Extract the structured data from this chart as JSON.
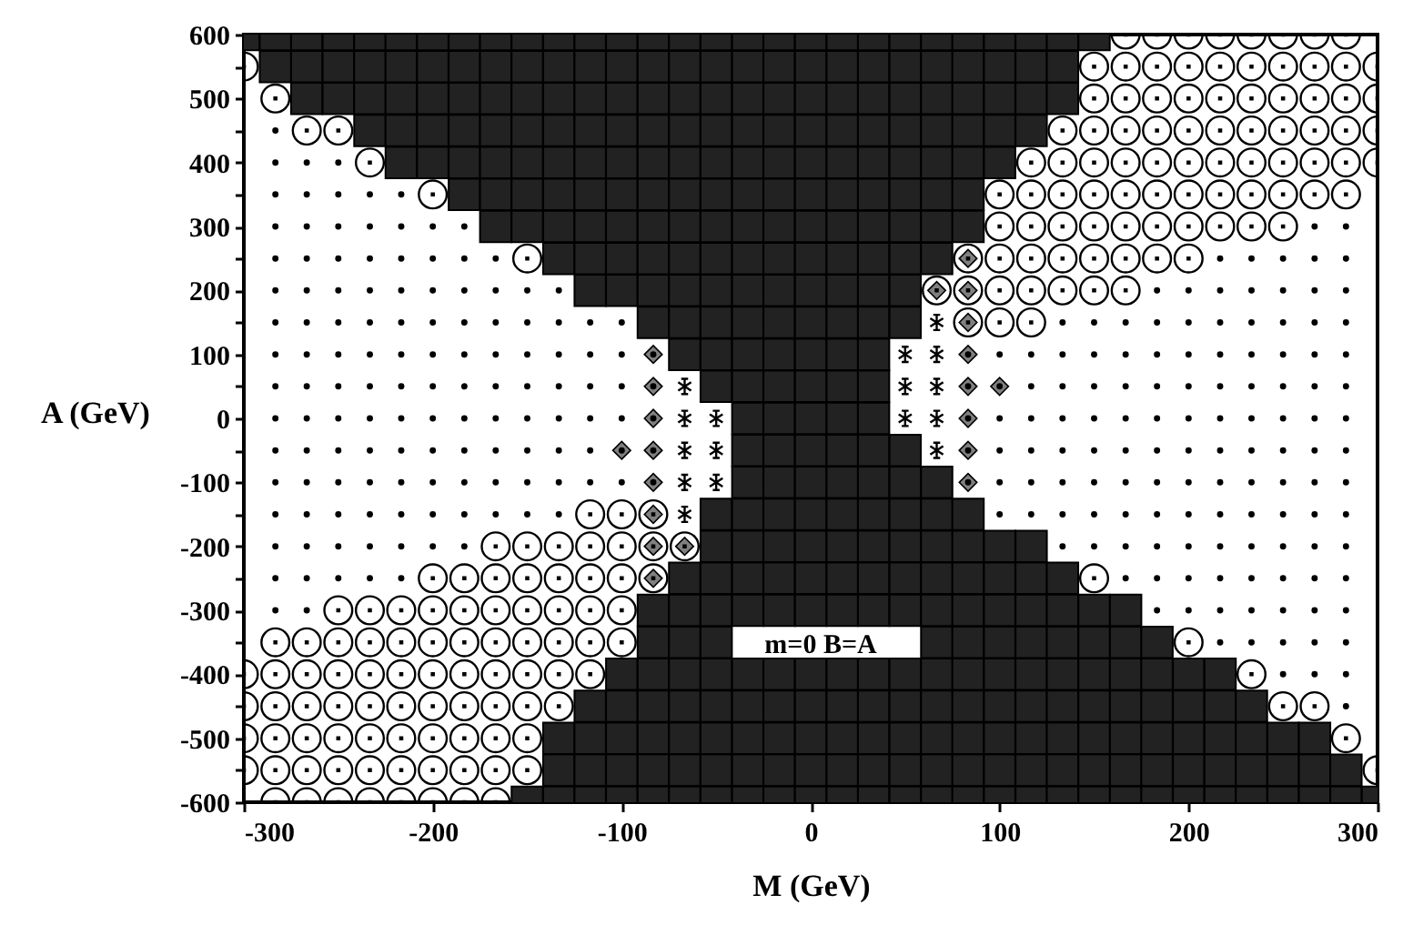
{
  "chart_data": {
    "type": "scatter",
    "xlabel": "M (GeV)",
    "ylabel": "A (GeV)",
    "xlim": [
      -300,
      300
    ],
    "ylim": [
      -600,
      600
    ],
    "xticks": [
      -300,
      -200,
      -100,
      0,
      100,
      200,
      300
    ],
    "yticks": [
      600,
      {
        "value": 550,
        "label": null
      },
      500,
      {
        "value": 450,
        "label": null
      },
      400,
      {
        "value": 350,
        "label": null
      },
      300,
      {
        "value": 250,
        "label": null
      },
      200,
      {
        "value": 150,
        "label": null
      },
      100,
      {
        "value": 50,
        "label": null
      },
      0,
      {
        "value": -50,
        "label": null
      },
      -100,
      {
        "value": -150,
        "label": null
      },
      -200,
      {
        "value": -250,
        "label": null
      },
      -300,
      {
        "value": -350,
        "label": null
      },
      -400,
      {
        "value": -450,
        "label": null
      },
      -500,
      {
        "value": -550,
        "label": null
      },
      -600
    ],
    "grid": false,
    "annotations": [
      "m=0  B=A"
    ],
    "series": [
      {
        "marker": "square",
        "color": "#222222",
        "x": [
          -300,
          -283.3,
          -266.7,
          -250,
          -233.3,
          -216.7,
          -200,
          -183.3,
          -166.7,
          -150,
          -133.3,
          -116.7,
          -100,
          -83.3,
          -66.7,
          -50,
          -33.3,
          -16.7,
          0,
          16.7,
          33.3,
          50,
          66.7,
          83.3,
          100,
          116.7,
          133.3,
          150,
          -283.3,
          -266.7,
          -250,
          -233.3,
          -216.7,
          -200,
          -183.3,
          -166.7,
          -150,
          -133.3,
          -116.7,
          -100,
          -83.3,
          -66.7,
          -50,
          -33.3,
          -16.7,
          0,
          16.7,
          33.3,
          50,
          66.7,
          83.3,
          100,
          116.7,
          133.3,
          -266.7,
          -250,
          -233.3,
          -216.7,
          -200,
          -183.3,
          -166.7,
          -150,
          -133.3,
          -116.7,
          -100,
          -83.3,
          -66.7,
          -50,
          -33.3,
          -16.7,
          0,
          16.7,
          33.3,
          50,
          66.7,
          83.3,
          100,
          116.7,
          133.3,
          -233.3,
          -216.7,
          -200,
          -183.3,
          -166.7,
          -150,
          -133.3,
          -116.7,
          -100,
          -83.3,
          -66.7,
          -50,
          -33.3,
          -16.7,
          0,
          16.7,
          33.3,
          50,
          66.7,
          83.3,
          100,
          116.7,
          -216.7,
          -200,
          -183.3,
          -166.7,
          -150,
          -133.3,
          -116.7,
          -100,
          -83.3,
          -66.7,
          -50,
          -33.3,
          -16.7,
          0,
          16.7,
          33.3,
          50,
          66.7,
          83.3,
          100,
          -183.3,
          -166.7,
          -150,
          -133.3,
          -116.7,
          -100,
          -83.3,
          -66.7,
          -50,
          -33.3,
          -16.7,
          0,
          16.7,
          33.3,
          50,
          66.7,
          83.3,
          -166.7,
          -150,
          -133.3,
          -116.7,
          -100,
          -83.3,
          -66.7,
          -50,
          -33.3,
          -16.7,
          0,
          16.7,
          33.3,
          50,
          66.7,
          83.3,
          -133.3,
          -116.7,
          -100,
          -83.3,
          -66.7,
          -50,
          -33.3,
          -16.7,
          0,
          16.7,
          33.3,
          50,
          66.7,
          -116.7,
          -100,
          -83.3,
          -66.7,
          -50,
          -33.3,
          -16.7,
          0,
          16.7,
          33.3,
          50,
          -83.3,
          -66.7,
          -50,
          -33.3,
          -16.7,
          0,
          16.7,
          33.3,
          50,
          -66.7,
          -50,
          -33.3,
          -16.7,
          0,
          16.7,
          33.3,
          -50,
          -33.3,
          -16.7,
          0,
          16.7,
          33.3,
          -33.3,
          -16.7,
          0,
          16.7,
          33.3,
          -33.3,
          -16.7,
          0,
          16.7,
          33.3,
          50,
          -33.3,
          -16.7,
          0,
          16.7,
          33.3,
          50,
          66.7,
          -50,
          -33.3,
          -16.7,
          0,
          16.7,
          33.3,
          50,
          66.7,
          83.3,
          -50,
          -33.3,
          -16.7,
          0,
          16.7,
          33.3,
          50,
          66.7,
          83.3,
          100,
          116.7,
          -66.7,
          -50,
          -33.3,
          -16.7,
          0,
          16.7,
          33.3,
          50,
          66.7,
          83.3,
          100,
          116.7,
          133.3,
          -83.3,
          -66.7,
          -50,
          -33.3,
          -16.7,
          0,
          16.7,
          33.3,
          50,
          66.7,
          83.3,
          100,
          116.7,
          133.3,
          150,
          166.7,
          -83.3,
          -66.7,
          -50,
          66.7,
          83.3,
          100,
          116.7,
          133.3,
          150,
          166.7,
          183.3,
          -100,
          -83.3,
          -66.7,
          -50,
          -33.3,
          -16.7,
          0,
          16.7,
          33.3,
          50,
          66.7,
          83.3,
          100,
          116.7,
          133.3,
          150,
          166.7,
          183.3,
          200,
          216.7,
          -116.7,
          -100,
          -83.3,
          -66.7,
          -50,
          -33.3,
          -16.7,
          0,
          16.7,
          33.3,
          50,
          66.7,
          83.3,
          100,
          116.7,
          133.3,
          150,
          166.7,
          183.3,
          200,
          216.7,
          233.3,
          -133.3,
          -116.7,
          -100,
          -83.3,
          -66.7,
          -50,
          -33.3,
          -16.7,
          0,
          16.7,
          33.3,
          50,
          66.7,
          83.3,
          100,
          116.7,
          133.3,
          150,
          166.7,
          183.3,
          200,
          216.7,
          233.3,
          250,
          266.7,
          -133.3,
          -116.7,
          -100,
          -83.3,
          -66.7,
          -50,
          -33.3,
          -16.7,
          0,
          16.7,
          33.3,
          50,
          66.7,
          83.3,
          100,
          116.7,
          133.3,
          150,
          166.7,
          183.3,
          200,
          216.7,
          233.3,
          250,
          266.7,
          283.3,
          -150,
          -133.3,
          -116.7,
          -100,
          -83.3,
          -66.7,
          -50,
          -33.3,
          -16.7,
          0,
          16.7,
          33.3,
          50,
          66.7,
          83.3,
          100,
          116.7,
          133.3,
          150,
          166.7,
          183.3,
          200,
          216.7,
          233.3,
          250,
          266.7,
          283.3,
          300
        ],
        "values": [
          600,
          600,
          600,
          600,
          600,
          600,
          600,
          600,
          600,
          600,
          600,
          600,
          600,
          600,
          600,
          600,
          600,
          600,
          600,
          600,
          600,
          600,
          600,
          600,
          600,
          600,
          600,
          600,
          550,
          550,
          550,
          550,
          550,
          550,
          550,
          550,
          550,
          550,
          550,
          550,
          550,
          550,
          550,
          550,
          550,
          550,
          550,
          550,
          550,
          550,
          550,
          550,
          550,
          550,
          500,
          500,
          500,
          500,
          500,
          500,
          500,
          500,
          500,
          500,
          500,
          500,
          500,
          500,
          500,
          500,
          500,
          500,
          500,
          500,
          500,
          500,
          500,
          500,
          500,
          450,
          450,
          450,
          450,
          450,
          450,
          450,
          450,
          450,
          450,
          450,
          450,
          450,
          450,
          450,
          450,
          450,
          450,
          450,
          450,
          450,
          450,
          400,
          400,
          400,
          400,
          400,
          400,
          400,
          400,
          400,
          400,
          400,
          400,
          400,
          400,
          400,
          400,
          400,
          400,
          400,
          400,
          350,
          350,
          350,
          350,
          350,
          350,
          350,
          350,
          350,
          350,
          350,
          350,
          350,
          350,
          350,
          350,
          350,
          300,
          300,
          300,
          300,
          300,
          300,
          300,
          300,
          300,
          300,
          300,
          300,
          300,
          300,
          300,
          300,
          250,
          250,
          250,
          250,
          250,
          250,
          250,
          250,
          250,
          250,
          250,
          250,
          250,
          200,
          200,
          200,
          200,
          200,
          200,
          200,
          200,
          200,
          200,
          200,
          150,
          150,
          150,
          150,
          150,
          150,
          150,
          150,
          150,
          100,
          100,
          100,
          100,
          100,
          100,
          100,
          50,
          50,
          50,
          50,
          50,
          50,
          0,
          0,
          0,
          0,
          0,
          -50,
          -50,
          -50,
          -50,
          -50,
          -50,
          -100,
          -100,
          -100,
          -100,
          -100,
          -100,
          -100,
          -150,
          -150,
          -150,
          -150,
          -150,
          -150,
          -150,
          -150,
          -150,
          -200,
          -200,
          -200,
          -200,
          -200,
          -200,
          -200,
          -200,
          -200,
          -200,
          -200,
          -250,
          -250,
          -250,
          -250,
          -250,
          -250,
          -250,
          -250,
          -250,
          -250,
          -250,
          -250,
          -250,
          -300,
          -300,
          -300,
          -300,
          -300,
          -300,
          -300,
          -300,
          -300,
          -300,
          -300,
          -300,
          -300,
          -300,
          -300,
          -300,
          -350,
          -350,
          -350,
          -350,
          -350,
          -350,
          -350,
          -350,
          -350,
          -350,
          -350,
          -400,
          -400,
          -400,
          -400,
          -400,
          -400,
          -400,
          -400,
          -400,
          -400,
          -400,
          -400,
          -400,
          -400,
          -400,
          -400,
          -400,
          -400,
          -400,
          -400,
          -450,
          -450,
          -450,
          -450,
          -450,
          -450,
          -450,
          -450,
          -450,
          -450,
          -450,
          -450,
          -450,
          -450,
          -450,
          -450,
          -450,
          -450,
          -450,
          -450,
          -450,
          -450,
          -500,
          -500,
          -500,
          -500,
          -500,
          -500,
          -500,
          -500,
          -500,
          -500,
          -500,
          -500,
          -500,
          -500,
          -500,
          -500,
          -500,
          -500,
          -500,
          -500,
          -500,
          -500,
          -500,
          -500,
          -500,
          -550,
          -550,
          -550,
          -550,
          -550,
          -550,
          -550,
          -550,
          -550,
          -550,
          -550,
          -550,
          -550,
          -550,
          -550,
          -550,
          -550,
          -550,
          -550,
          -550,
          -550,
          -550,
          -550,
          -550,
          -550,
          -550,
          -600,
          -600,
          -600,
          -600,
          -600,
          -600,
          -600,
          -600,
          -600,
          -600,
          -600,
          -600,
          -600,
          -600,
          -600,
          -600,
          -600,
          -600,
          -600,
          -600,
          -600,
          -600,
          -600,
          -600,
          -600,
          -600,
          -600,
          -600
        ]
      },
      {
        "marker": "diamond",
        "color": "#808080",
        "x": [
          83.3,
          66.7,
          83.3,
          83.3,
          -83.3,
          83.3,
          -83.3,
          83.3,
          100,
          -83.3,
          83.3,
          -100,
          -83.3,
          83.3,
          -83.3,
          83.3,
          -83.3,
          -83.3,
          -66.7,
          -83.3
        ],
        "values": [
          250,
          200,
          200,
          150,
          100,
          100,
          50,
          50,
          50,
          0,
          0,
          -50,
          -50,
          -50,
          -100,
          -100,
          -150,
          -200,
          -200,
          -250
        ]
      },
      {
        "type": "bubble",
        "marker": "circle",
        "color": "#000000",
        "sizes": [
          1,
          1,
          1,
          1,
          1,
          1,
          1,
          1,
          1,
          1,
          1,
          1,
          1,
          1,
          1,
          1,
          1,
          1,
          1,
          1,
          1,
          1,
          1,
          1,
          1,
          1,
          1,
          1,
          1,
          1,
          1,
          1,
          1,
          1,
          1,
          1,
          1,
          1,
          1,
          1,
          1,
          1,
          1,
          1,
          1,
          1,
          1,
          1,
          1,
          1,
          1,
          1,
          1,
          1,
          1,
          1,
          1,
          1,
          1,
          1,
          1,
          1,
          1,
          1,
          1,
          1,
          1,
          1,
          1,
          1,
          1,
          1,
          1,
          1,
          1,
          1,
          1,
          1,
          1,
          1,
          1,
          1,
          1,
          1,
          1,
          1,
          1,
          1,
          1,
          1,
          1,
          1,
          1,
          1,
          1,
          1,
          1,
          1,
          1,
          1,
          1,
          1,
          1,
          1,
          1,
          1,
          1,
          1,
          1,
          1,
          1,
          1,
          1,
          1,
          1,
          1,
          1,
          1,
          1,
          1,
          1,
          1,
          1,
          1,
          1,
          1,
          1,
          1,
          1,
          1,
          1,
          1,
          1,
          1,
          1,
          1,
          1,
          1,
          1,
          1,
          1,
          1,
          1,
          1,
          1,
          1,
          1,
          1,
          1,
          1,
          1,
          1,
          1,
          1,
          1,
          1,
          1,
          1,
          1,
          1,
          1,
          1,
          1,
          1,
          1,
          1,
          1,
          1,
          1,
          1,
          1,
          1,
          1,
          1,
          1,
          1,
          1,
          1,
          1,
          1,
          1,
          1,
          1,
          1,
          1,
          1,
          1,
          1,
          1,
          1,
          1,
          1,
          1,
          1,
          1,
          1
        ],
        "x": [
          166.7,
          183.3,
          200,
          216.7,
          233.3,
          250,
          266.7,
          283.3,
          -300,
          150,
          166.7,
          183.3,
          200,
          216.7,
          233.3,
          250,
          266.7,
          283.3,
          300,
          -283.3,
          150,
          166.7,
          183.3,
          200,
          216.7,
          233.3,
          250,
          266.7,
          283.3,
          300,
          -266.7,
          -250,
          133.3,
          150,
          166.7,
          183.3,
          200,
          216.7,
          233.3,
          250,
          266.7,
          283.3,
          300,
          -233.3,
          116.7,
          133.3,
          150,
          166.7,
          183.3,
          200,
          216.7,
          233.3,
          250,
          266.7,
          283.3,
          300,
          -200,
          100,
          116.7,
          133.3,
          150,
          166.7,
          183.3,
          200,
          216.7,
          233.3,
          250,
          266.7,
          283.3,
          100,
          116.7,
          133.3,
          150,
          166.7,
          183.3,
          200,
          216.7,
          233.3,
          250,
          -150,
          83.3,
          100,
          116.7,
          133.3,
          150,
          166.7,
          183.3,
          200,
          66.7,
          83.3,
          100,
          116.7,
          133.3,
          150,
          166.7,
          83.3,
          100,
          116.7,
          -116.7,
          -100,
          -83.3,
          -166.7,
          -150,
          -133.3,
          -116.7,
          -100,
          -83.3,
          -66.7,
          -200,
          -183.3,
          -166.7,
          -150,
          -133.3,
          -116.7,
          -100,
          -83.3,
          150,
          -250,
          -233.3,
          -216.7,
          -200,
          -183.3,
          -166.7,
          -150,
          -133.3,
          -116.7,
          -100,
          -283.3,
          -266.7,
          -250,
          -233.3,
          -216.7,
          -200,
          -183.3,
          -166.7,
          -150,
          -133.3,
          -116.7,
          -100,
          200,
          -300,
          -283.3,
          -266.7,
          -250,
          -233.3,
          -216.7,
          -200,
          -183.3,
          -166.7,
          -150,
          -133.3,
          -116.7,
          233.3,
          -300,
          -283.3,
          -266.7,
          -250,
          -233.3,
          -216.7,
          -200,
          -183.3,
          -166.7,
          -150,
          -133.3,
          250,
          266.7,
          -300,
          -283.3,
          -266.7,
          -250,
          -233.3,
          -216.7,
          -200,
          -183.3,
          -166.7,
          -150,
          283.3,
          -300,
          -283.3,
          -266.7,
          -250,
          -233.3,
          -216.7,
          -200,
          -183.3,
          -166.7,
          -150,
          300,
          -283.3,
          -266.7,
          -250,
          -233.3,
          -216.7,
          -200,
          -183.3,
          -166.7
        ],
        "values": [
          600,
          600,
          600,
          600,
          600,
          600,
          600,
          600,
          550,
          550,
          550,
          550,
          550,
          550,
          550,
          550,
          550,
          550,
          550,
          500,
          500,
          500,
          500,
          500,
          500,
          500,
          500,
          500,
          500,
          500,
          450,
          450,
          450,
          450,
          450,
          450,
          450,
          450,
          450,
          450,
          450,
          450,
          450,
          400,
          400,
          400,
          400,
          400,
          400,
          400,
          400,
          400,
          400,
          400,
          400,
          400,
          350,
          350,
          350,
          350,
          350,
          350,
          350,
          350,
          350,
          350,
          350,
          350,
          350,
          300,
          300,
          300,
          300,
          300,
          300,
          300,
          300,
          300,
          300,
          250,
          250,
          250,
          250,
          250,
          250,
          250,
          250,
          250,
          200,
          200,
          200,
          200,
          200,
          200,
          200,
          150,
          150,
          150,
          -150,
          -150,
          -150,
          -200,
          -200,
          -200,
          -200,
          -200,
          -200,
          -200,
          -250,
          -250,
          -250,
          -250,
          -250,
          -250,
          -250,
          -250,
          -250,
          -300,
          -300,
          -300,
          -300,
          -300,
          -300,
          -300,
          -300,
          -300,
          -300,
          -350,
          -350,
          -350,
          -350,
          -350,
          -350,
          -350,
          -350,
          -350,
          -350,
          -350,
          -350,
          -350,
          -400,
          -400,
          -400,
          -400,
          -400,
          -400,
          -400,
          -400,
          -400,
          -400,
          -400,
          -400,
          -400,
          -450,
          -450,
          -450,
          -450,
          -450,
          -450,
          -450,
          -450,
          -450,
          -450,
          -450,
          -450,
          -450,
          -500,
          -500,
          -500,
          -500,
          -500,
          -500,
          -500,
          -500,
          -500,
          -500,
          -500,
          -550,
          -550,
          -550,
          -550,
          -550,
          -550,
          -550,
          -550,
          -550,
          -550,
          -550,
          -600,
          -600,
          -600,
          -600,
          -600,
          -600,
          -600,
          -600
        ]
      },
      {
        "marker": "circle",
        "color": "#000000",
        "x": [
          -283.3,
          -283.3,
          -266.7,
          -250,
          -283.3,
          -266.7,
          -250,
          -233.3,
          -216.7,
          -283.3,
          -266.7,
          -250,
          -233.3,
          -216.7,
          -200,
          -183.3,
          266.7,
          283.3,
          -283.3,
          -266.7,
          -250,
          -233.3,
          -216.7,
          -200,
          -183.3,
          -166.7,
          216.7,
          233.3,
          250,
          266.7,
          283.3,
          -283.3,
          -266.7,
          -250,
          -233.3,
          -216.7,
          -200,
          -183.3,
          -166.7,
          -150,
          -133.3,
          183.3,
          200,
          216.7,
          233.3,
          250,
          266.7,
          283.3,
          -283.3,
          -266.7,
          -250,
          -233.3,
          -216.7,
          -200,
          -183.3,
          -166.7,
          -150,
          -133.3,
          -116.7,
          -100,
          133.3,
          150,
          166.7,
          183.3,
          200,
          216.7,
          233.3,
          250,
          266.7,
          283.3,
          -283.3,
          -266.7,
          -250,
          -233.3,
          -216.7,
          -200,
          -183.3,
          -166.7,
          -150,
          -133.3,
          -116.7,
          -100,
          100,
          116.7,
          133.3,
          150,
          166.7,
          183.3,
          200,
          216.7,
          233.3,
          250,
          266.7,
          283.3,
          -283.3,
          -266.7,
          -250,
          -233.3,
          -216.7,
          -200,
          -183.3,
          -166.7,
          -150,
          -133.3,
          -116.7,
          -100,
          116.7,
          133.3,
          150,
          166.7,
          183.3,
          200,
          216.7,
          233.3,
          250,
          266.7,
          283.3,
          -283.3,
          -266.7,
          -250,
          -233.3,
          -216.7,
          -200,
          -183.3,
          -166.7,
          -150,
          -133.3,
          -116.7,
          -100,
          100,
          116.7,
          133.3,
          150,
          166.7,
          183.3,
          200,
          216.7,
          233.3,
          250,
          266.7,
          283.3,
          -283.3,
          -266.7,
          -250,
          -233.3,
          -216.7,
          -200,
          -183.3,
          -166.7,
          -150,
          -133.3,
          -116.7,
          100,
          116.7,
          133.3,
          150,
          166.7,
          183.3,
          200,
          216.7,
          233.3,
          250,
          266.7,
          283.3,
          -283.3,
          -266.7,
          -250,
          -233.3,
          -216.7,
          -200,
          -183.3,
          -166.7,
          -150,
          -133.3,
          -116.7,
          -100,
          100,
          116.7,
          133.3,
          150,
          166.7,
          183.3,
          200,
          216.7,
          233.3,
          250,
          266.7,
          283.3,
          -283.3,
          -266.7,
          -250,
          -233.3,
          -216.7,
          -200,
          -183.3,
          -166.7,
          -150,
          -133.3,
          100,
          116.7,
          133.3,
          150,
          166.7,
          183.3,
          200,
          216.7,
          233.3,
          250,
          266.7,
          283.3,
          -283.3,
          -266.7,
          -250,
          -233.3,
          -216.7,
          -200,
          -183.3,
          133.3,
          150,
          166.7,
          183.3,
          200,
          216.7,
          233.3,
          250,
          266.7,
          283.3,
          -283.3,
          -266.7,
          -250,
          -233.3,
          -216.7,
          166.7,
          183.3,
          200,
          216.7,
          233.3,
          250,
          266.7,
          283.3,
          -283.3,
          -266.7,
          183.3,
          200,
          216.7,
          233.3,
          250,
          266.7,
          283.3,
          216.7,
          233.3,
          250,
          266.7,
          283.3,
          250,
          266.7,
          283.3,
          283.3,
          -83.3,
          83.3,
          -83.3,
          83.3,
          100,
          -83.3,
          83.3,
          -100,
          -83.3,
          83.3,
          -83.3,
          83.3
        ],
        "values": [
          450,
          400,
          400,
          400,
          350,
          350,
          350,
          350,
          350,
          300,
          300,
          300,
          300,
          300,
          300,
          300,
          300,
          300,
          250,
          250,
          250,
          250,
          250,
          250,
          250,
          250,
          250,
          250,
          250,
          250,
          250,
          200,
          200,
          200,
          200,
          200,
          200,
          200,
          200,
          200,
          200,
          200,
          200,
          200,
          200,
          200,
          200,
          200,
          150,
          150,
          150,
          150,
          150,
          150,
          150,
          150,
          150,
          150,
          150,
          150,
          150,
          150,
          150,
          150,
          150,
          150,
          150,
          150,
          150,
          150,
          100,
          100,
          100,
          100,
          100,
          100,
          100,
          100,
          100,
          100,
          100,
          100,
          100,
          100,
          100,
          100,
          100,
          100,
          100,
          100,
          100,
          100,
          100,
          100,
          50,
          50,
          50,
          50,
          50,
          50,
          50,
          50,
          50,
          50,
          50,
          50,
          50,
          50,
          50,
          50,
          50,
          50,
          50,
          50,
          50,
          50,
          50,
          0,
          0,
          0,
          0,
          0,
          0,
          0,
          0,
          0,
          0,
          0,
          0,
          0,
          0,
          0,
          0,
          0,
          0,
          0,
          0,
          0,
          0,
          0,
          0,
          -50,
          -50,
          -50,
          -50,
          -50,
          -50,
          -50,
          -50,
          -50,
          -50,
          -50,
          -50,
          -50,
          -50,
          -50,
          -50,
          -50,
          -50,
          -50,
          -50,
          -50,
          -50,
          -50,
          -100,
          -100,
          -100,
          -100,
          -100,
          -100,
          -100,
          -100,
          -100,
          -100,
          -100,
          -100,
          -100,
          -100,
          -100,
          -100,
          -100,
          -100,
          -100,
          -100,
          -100,
          -100,
          -100,
          -100,
          -150,
          -150,
          -150,
          -150,
          -150,
          -150,
          -150,
          -150,
          -150,
          -150,
          -150,
          -150,
          -150,
          -150,
          -150,
          -150,
          -150,
          -150,
          -150,
          -150,
          -150,
          -150,
          -200,
          -200,
          -200,
          -200,
          -200,
          -200,
          -200,
          -200,
          -200,
          -200,
          -200,
          -200,
          -200,
          -200,
          -200,
          -200,
          -200,
          -250,
          -250,
          -250,
          -250,
          -250,
          -250,
          -250,
          -250,
          -250,
          -250,
          -250,
          -250,
          -250,
          -300,
          -300,
          -300,
          -300,
          -300,
          -300,
          -300,
          -300,
          -300,
          -350,
          -350,
          -350,
          -350,
          -350,
          -400,
          -400,
          -400,
          -450,
          100,
          100,
          50,
          50,
          50,
          0,
          0,
          -50,
          -50,
          -50,
          -100,
          -100
        ]
      },
      {
        "marker": "cross",
        "color": "#000000",
        "x": [
          66.7,
          50,
          66.7,
          -66.7,
          50,
          66.7,
          -66.7,
          -50,
          50,
          66.7,
          -66.7,
          -50,
          66.7,
          -66.7,
          -50,
          -66.7
        ],
        "values": [
          150,
          100,
          100,
          50,
          50,
          50,
          0,
          0,
          0,
          0,
          -50,
          -50,
          -50,
          -100,
          -100,
          -150
        ]
      }
    ]
  }
}
